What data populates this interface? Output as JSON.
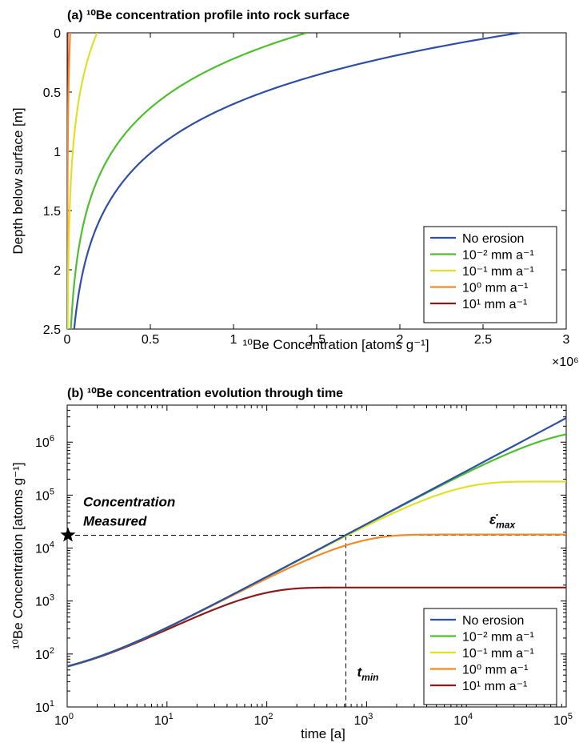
{
  "chart_data": [
    {
      "id": "a",
      "type": "line",
      "title": "(a) ¹⁰Be concentration profile into rock surface",
      "xlabel": "¹⁰Be Concentration [atoms g⁻¹]",
      "ylabel": "Depth below surface [m]",
      "x_multiplier": "×10⁶",
      "xlim": [
        0,
        3
      ],
      "ylim": [
        0,
        2.5
      ],
      "y_reversed": true,
      "grid": false,
      "legend_position": "bottom-right",
      "x_ticks": [
        "0",
        "0.5",
        "1",
        "1.5",
        "2",
        "2.5",
        "3"
      ],
      "y_ticks": [
        "0",
        "0.5",
        "1",
        "1.5",
        "2",
        "2.5"
      ],
      "x_units": "×10⁶ atoms g⁻¹",
      "series": [
        {
          "name": "No erosion",
          "color": "#2f4fa6",
          "surface_value": 2.72,
          "attenuation_length_m": 0.6
        },
        {
          "name": "10⁻² mm a⁻¹",
          "color": "#4fbf2f",
          "surface_value": 1.44,
          "attenuation_length_m": 0.6
        },
        {
          "name": "10⁻¹ mm a⁻¹",
          "color": "#e0e02a",
          "surface_value": 0.18,
          "attenuation_length_m": 0.6
        },
        {
          "name": "10⁰  mm a⁻¹",
          "color": "#f08a2a",
          "surface_value": 0.018,
          "attenuation_length_m": 0.6
        },
        {
          "name": "10¹  mm a⁻¹",
          "color": "#8b1a1a",
          "surface_value": 0.0018,
          "attenuation_length_m": 0.6
        }
      ]
    },
    {
      "id": "b",
      "type": "line",
      "title": "(b) ¹⁰Be concentration evolution through time",
      "xlabel": "time [a]",
      "ylabel": "¹⁰Be Concentration [atoms g⁻¹]",
      "x_scale": "log",
      "y_scale": "log",
      "xlim": [
        1,
        100000
      ],
      "ylim": [
        10,
        5000000
      ],
      "grid": false,
      "legend_position": "bottom-right",
      "x_ticks": [
        {
          "value": 1,
          "base": "10",
          "exp": "0"
        },
        {
          "value": 10,
          "base": "10",
          "exp": "1"
        },
        {
          "value": 100,
          "base": "10",
          "exp": "2"
        },
        {
          "value": 1000,
          "base": "10",
          "exp": "3"
        },
        {
          "value": 10000,
          "base": "10",
          "exp": "4"
        },
        {
          "value": 100000,
          "base": "10",
          "exp": "5"
        }
      ],
      "y_ticks": [
        {
          "value": 10,
          "base": "10",
          "exp": "1"
        },
        {
          "value": 100,
          "base": "10",
          "exp": "2"
        },
        {
          "value": 1000,
          "base": "10",
          "exp": "3"
        },
        {
          "value": 10000,
          "base": "10",
          "exp": "4"
        },
        {
          "value": 100000,
          "base": "10",
          "exp": "5"
        },
        {
          "value": 1000000,
          "base": "10",
          "exp": "6"
        }
      ],
      "initial_concentration": 30,
      "production_rate_per_year": 28.5,
      "series": [
        {
          "name": "No erosion",
          "color": "#2f4fa6",
          "steady_state": null
        },
        {
          "name": "10⁻² mm a⁻¹",
          "color": "#4fbf2f",
          "steady_state": 1750000
        },
        {
          "name": "10⁻¹ mm a⁻¹",
          "color": "#e0e02a",
          "steady_state": 180000
        },
        {
          "name": "10⁰  mm a⁻¹",
          "color": "#f08a2a",
          "steady_state": 18000
        },
        {
          "name": "10¹  mm a⁻¹",
          "color": "#8b1a1a",
          "steady_state": 1800
        }
      ],
      "annotations": {
        "measured_label_line1": "Concentration",
        "measured_label_line2": "Measured",
        "measured_concentration": 17500,
        "t_min_label": "t",
        "t_min_sub": "min",
        "t_min_value": 620,
        "eps_max_label": "ε̇",
        "eps_max_sub": "max"
      }
    }
  ]
}
